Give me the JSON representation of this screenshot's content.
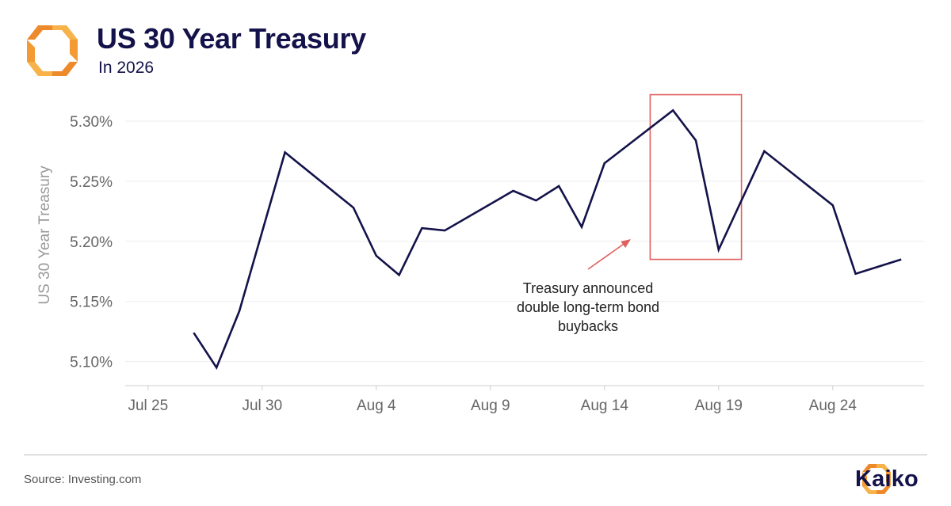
{
  "header": {
    "title": "US 30 Year Treasury",
    "subtitle": "In 2026",
    "logo_icon": "kaiko-logo-icon"
  },
  "footer": {
    "source": "Source: Investing.com",
    "brand": "Kaiko"
  },
  "colors": {
    "line": "#13124a",
    "accent_orange": "#f5a03c",
    "accent_deep": "#e8822a",
    "highlight_box": "#e06060",
    "grid": "#eeeeee",
    "tick_text": "#666666"
  },
  "chart_data": {
    "type": "line",
    "title": "US 30 Year Treasury",
    "subtitle": "In 2026",
    "xlabel": "",
    "ylabel": "US 30 Year Treasury",
    "ylim": [
      5.08,
      5.325
    ],
    "xlim": [
      "2026-07-24",
      "2026-08-28"
    ],
    "yticks": [
      5.1,
      5.15,
      5.2,
      5.25,
      5.3
    ],
    "ytick_labels": [
      "5.10%",
      "5.15%",
      "5.20%",
      "5.25%",
      "5.30%"
    ],
    "xticks": [
      "2026-07-25",
      "2026-07-30",
      "2026-08-04",
      "2026-08-09",
      "2026-08-14",
      "2026-08-19",
      "2026-08-24"
    ],
    "xtick_labels": [
      "Jul 25",
      "Jul 30",
      "Aug 4",
      "Aug 9",
      "Aug 14",
      "Aug 19",
      "Aug 24"
    ],
    "grid": true,
    "series": [
      {
        "points": [
          {
            "x": "2026-07-27",
            "y": 5.124
          },
          {
            "x": "2026-07-28",
            "y": 5.095
          },
          {
            "x": "2026-07-29",
            "y": 5.142
          },
          {
            "x": "2026-07-31",
            "y": 5.274
          },
          {
            "x": "2026-08-03",
            "y": 5.228
          },
          {
            "x": "2026-08-04",
            "y": 5.188
          },
          {
            "x": "2026-08-05",
            "y": 5.172
          },
          {
            "x": "2026-08-06",
            "y": 5.211
          },
          {
            "x": "2026-08-07",
            "y": 5.209
          },
          {
            "x": "2026-08-10",
            "y": 5.242
          },
          {
            "x": "2026-08-11",
            "y": 5.234
          },
          {
            "x": "2026-08-12",
            "y": 5.246
          },
          {
            "x": "2026-08-13",
            "y": 5.212
          },
          {
            "x": "2026-08-14",
            "y": 5.265
          },
          {
            "x": "2026-08-17",
            "y": 5.309
          },
          {
            "x": "2026-08-18",
            "y": 5.284
          },
          {
            "x": "2026-08-19",
            "y": 5.193
          },
          {
            "x": "2026-08-21",
            "y": 5.275
          },
          {
            "x": "2026-08-24",
            "y": 5.23
          },
          {
            "x": "2026-08-25",
            "y": 5.173
          },
          {
            "x": "2026-08-27",
            "y": 5.185
          }
        ]
      }
    ],
    "annotation": {
      "text_lines": [
        "Treasury announced",
        "double long-term bond",
        "buybacks"
      ],
      "highlight_range": {
        "x_start": "2026-08-16",
        "x_end": "2026-08-20",
        "y_start": 5.185,
        "y_end": 5.322
      }
    }
  }
}
